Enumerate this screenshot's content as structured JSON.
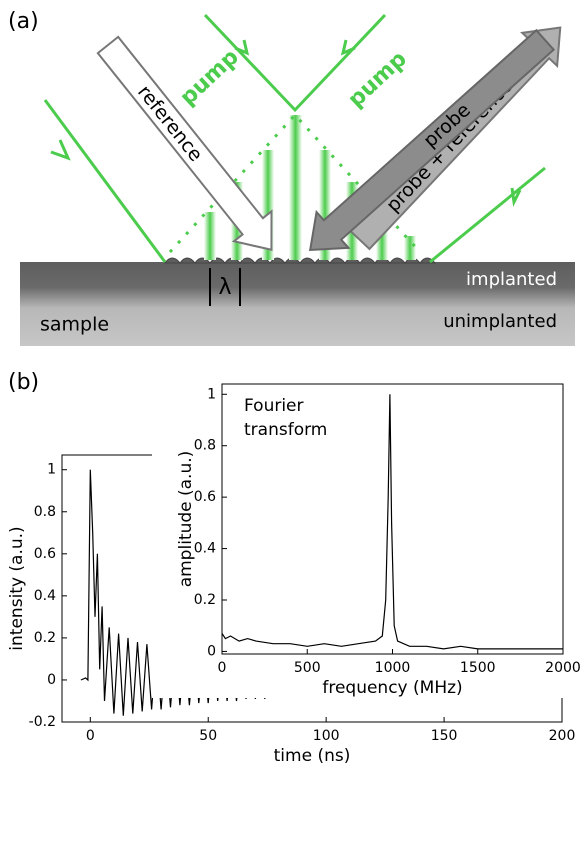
{
  "diagram": {
    "panel_label": "(a)",
    "pump_left": "pump",
    "pump_right": "pump",
    "reference": "reference",
    "probe": "probe",
    "probe_reference": "probe + reference",
    "lambda": "λ",
    "implanted": "implanted",
    "unimplanted": "unimplanted",
    "sample": "sample"
  },
  "figure": {
    "panel_label": "(b)"
  },
  "chart_data": [
    {
      "type": "line",
      "xlabel": "time (ns)",
      "ylabel": "intensity (a.u.)",
      "xlim": [
        -12,
        200
      ],
      "ylim": [
        -0.2,
        1.07
      ],
      "xticks": [
        0,
        50,
        100,
        150,
        200
      ],
      "yticks": [
        -0.2,
        0,
        0.2,
        0.4,
        0.6,
        0.8,
        1
      ],
      "color": "#000000",
      "x": [
        -4,
        -2,
        -1,
        0,
        1,
        2,
        3,
        4,
        5,
        6,
        8,
        10,
        12,
        14,
        16,
        18,
        20,
        22,
        24,
        26,
        28,
        30,
        32,
        34,
        36,
        38,
        40,
        42,
        44,
        46,
        48,
        50,
        52,
        54,
        56,
        58,
        60,
        62,
        64,
        66,
        68,
        70,
        72,
        74,
        76,
        78,
        80,
        82,
        84,
        86,
        88,
        90,
        92,
        94,
        96,
        98,
        100,
        102,
        104,
        106,
        108,
        110,
        112,
        114,
        116,
        118,
        120,
        122,
        124,
        126,
        128,
        130,
        132,
        134,
        136,
        138,
        140,
        142,
        144,
        146,
        148,
        150,
        152,
        154,
        156,
        158,
        160,
        162,
        164,
        166,
        168,
        170,
        172,
        174,
        176,
        178,
        180,
        182,
        184,
        186,
        188,
        190,
        192,
        194
      ],
      "values": [
        0,
        0.01,
        0,
        1.0,
        0.7,
        0.3,
        0.6,
        0.05,
        0.35,
        -0.1,
        0.25,
        -0.16,
        0.22,
        -0.17,
        0.2,
        -0.16,
        0.18,
        -0.15,
        0.17,
        -0.14,
        0.16,
        -0.14,
        0.15,
        -0.13,
        0.15,
        -0.12,
        0.14,
        -0.12,
        0.14,
        -0.11,
        0.13,
        -0.11,
        0.13,
        -0.1,
        0.12,
        -0.1,
        0.12,
        -0.1,
        0.11,
        -0.09,
        0.11,
        -0.09,
        0.1,
        -0.09,
        0.1,
        -0.08,
        0.1,
        -0.08,
        0.09,
        -0.08,
        0.09,
        -0.07,
        0.09,
        -0.07,
        0.08,
        -0.07,
        0.08,
        -0.07,
        0.08,
        -0.06,
        0.08,
        -0.06,
        0.07,
        -0.06,
        0.07,
        -0.06,
        0.07,
        -0.06,
        0.07,
        -0.05,
        0.07,
        -0.05,
        0.06,
        -0.05,
        0.06,
        -0.05,
        0.06,
        -0.05,
        0.06,
        -0.05,
        0.05,
        -0.04,
        0.05,
        -0.04,
        0.05,
        -0.04,
        0.05,
        -0.04,
        0.05,
        -0.04,
        0.04,
        -0.04,
        0.04,
        -0.04,
        0.04,
        -0.03,
        0.04,
        -0.03,
        0.04,
        -0.03,
        0.03,
        -0.03,
        0.03,
        -0.03
      ]
    },
    {
      "type": "line",
      "annotation": [
        "Fourier",
        "transform"
      ],
      "xlabel": "frequency (MHz)",
      "ylabel": "amplitude (a.u.)",
      "xlim": [
        0,
        2000
      ],
      "ylim": [
        -0.01,
        1.04
      ],
      "xticks": [
        0,
        500,
        1000,
        1500,
        2000
      ],
      "yticks": [
        0,
        0.2,
        0.4,
        0.6,
        0.8,
        1
      ],
      "color": "#000000",
      "x": [
        0,
        20,
        50,
        100,
        150,
        200,
        300,
        400,
        500,
        600,
        700,
        800,
        900,
        940,
        960,
        975,
        985,
        995,
        1010,
        1030,
        1100,
        1200,
        1300,
        1400,
        1500,
        1600,
        1700,
        1800,
        1900,
        2000
      ],
      "values": [
        0.07,
        0.05,
        0.06,
        0.04,
        0.05,
        0.04,
        0.03,
        0.03,
        0.02,
        0.03,
        0.02,
        0.03,
        0.04,
        0.06,
        0.2,
        0.6,
        1.0,
        0.5,
        0.1,
        0.04,
        0.02,
        0.02,
        0.01,
        0.02,
        0.01,
        0.01,
        0.01,
        0.01,
        0.01,
        0.01
      ]
    }
  ]
}
